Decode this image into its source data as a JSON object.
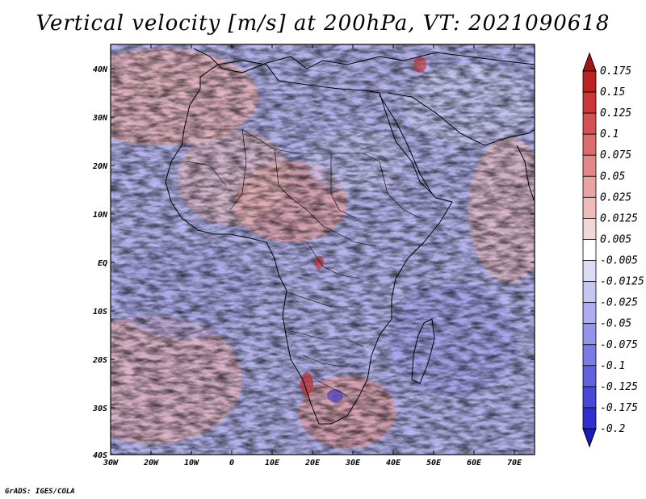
{
  "title": "Vertical velocity [m/s] at 200hPa, VT: 2021090618",
  "credit": "GrADS: IGES/COLA",
  "colors": {
    "positive": [
      "#f2d7d7",
      "#efbcbc",
      "#eaa3a3",
      "#e38888",
      "#dc6c6c",
      "#d55252",
      "#cc3838",
      "#bb2222",
      "#a11515"
    ],
    "neutral": "#ffffff",
    "negative": [
      "#dcdcf6",
      "#c6c6f3",
      "#adadef",
      "#9494ea",
      "#7b7be5",
      "#6262df",
      "#4848d8",
      "#2f2fce",
      "#1c1cb6",
      "#0d0d8c"
    ],
    "land_outline": "#000000"
  },
  "map": {
    "lon_labels": [
      "30W",
      "20W",
      "10W",
      "0",
      "10E",
      "20E",
      "30E",
      "40E",
      "50E",
      "60E",
      "70E"
    ],
    "lat_labels": [
      "40N",
      "30N",
      "20N",
      "10N",
      "EQ",
      "10S",
      "20S",
      "30S",
      "40S"
    ]
  },
  "colorbar": {
    "labels": [
      "0.175",
      "0.15",
      "0.125",
      "0.1",
      "0.075",
      "0.05",
      "0.025",
      "0.0125",
      "0.005",
      "-0.005",
      "-0.0125",
      "-0.025",
      "-0.05",
      "-0.075",
      "-0.1",
      "-0.125",
      "-0.175",
      "-0.2"
    ]
  }
}
